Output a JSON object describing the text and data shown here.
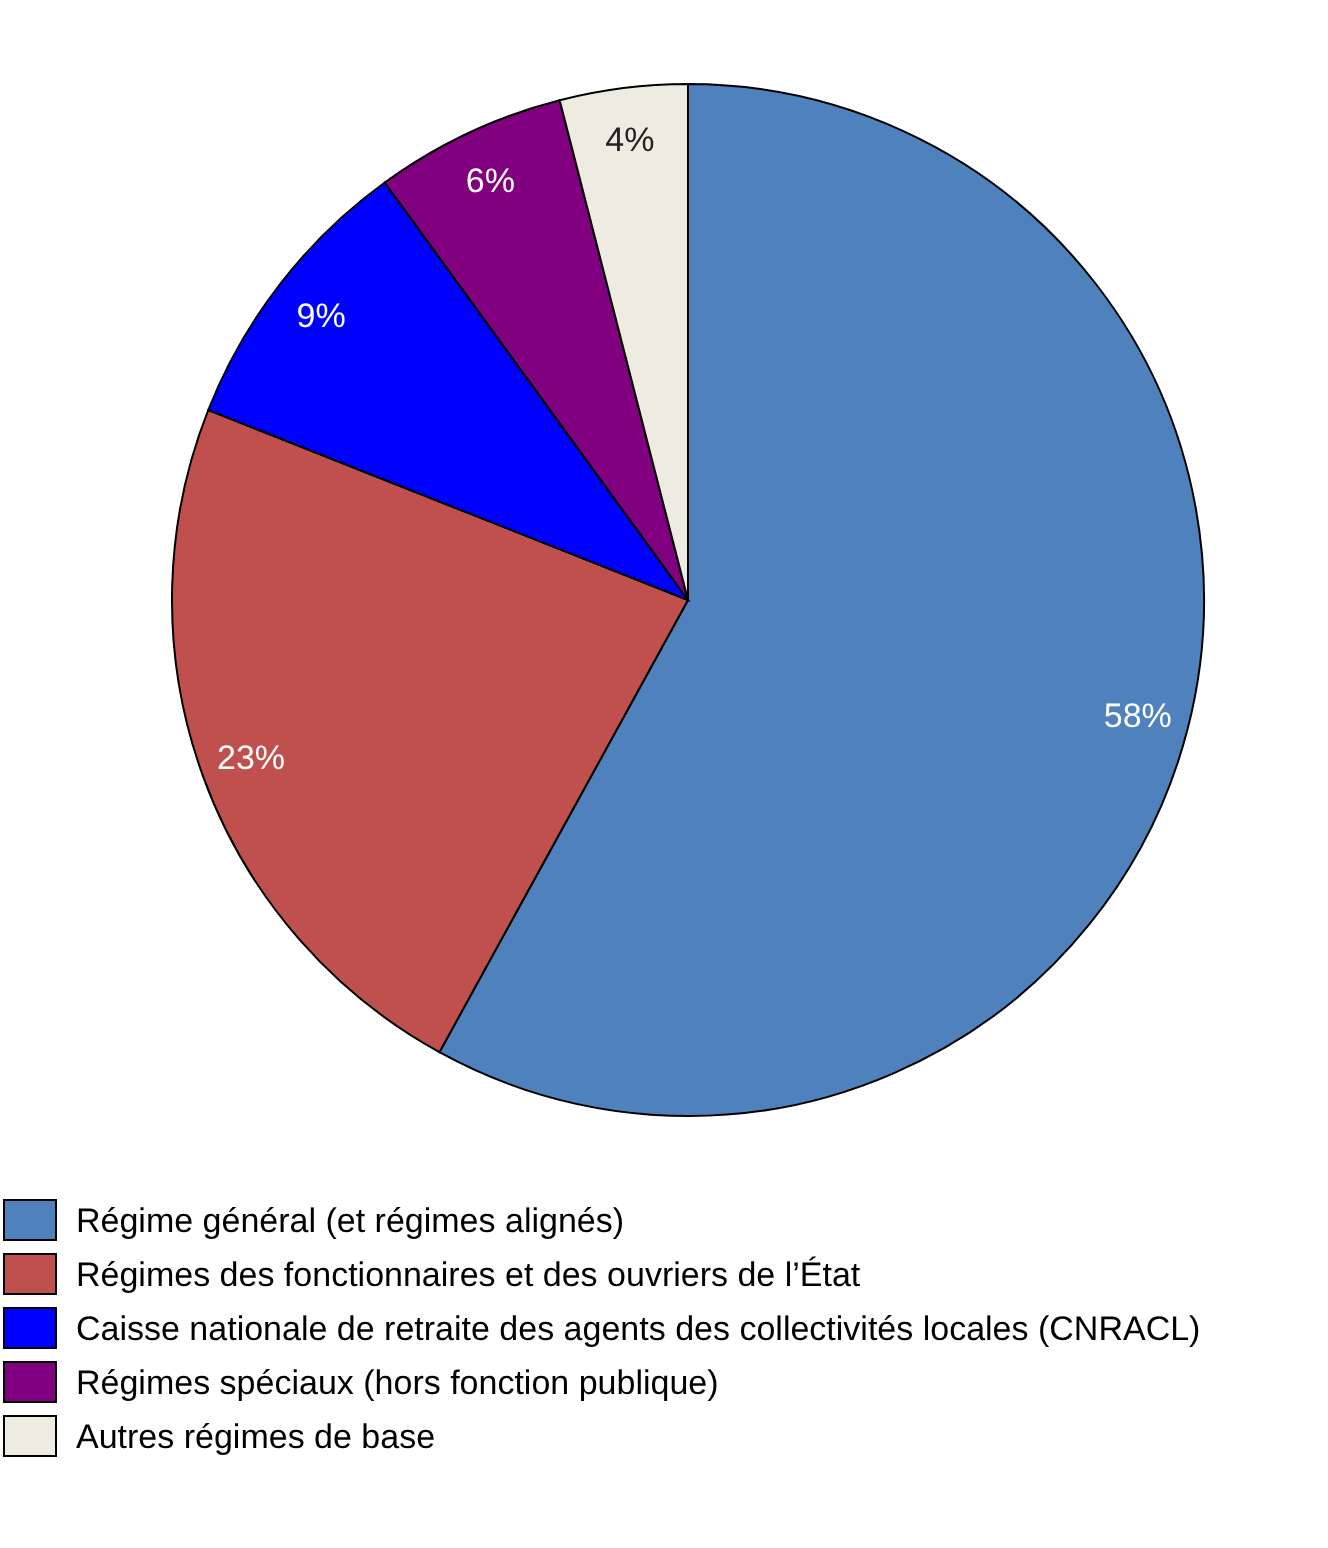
{
  "chart_data": {
    "type": "pie",
    "categories": [
      "Régime général (et régimes alignés)",
      "Régimes des fonctionnaires et des ouvriers de l’État",
      "Caisse nationale de retraite des agents des collectivités locales (CNRACL)",
      "Régimes spéciaux (hors fonction publique)",
      "Autres régimes de base"
    ],
    "values": [
      58,
      23,
      9,
      6,
      4
    ],
    "colors": [
      "#4f81bd",
      "#c0504d",
      "#0000ff",
      "#800080",
      "#eeece1"
    ],
    "value_labels": [
      "58%",
      "23%",
      "9%",
      "6%",
      "4%"
    ],
    "legend": "bottom"
  }
}
